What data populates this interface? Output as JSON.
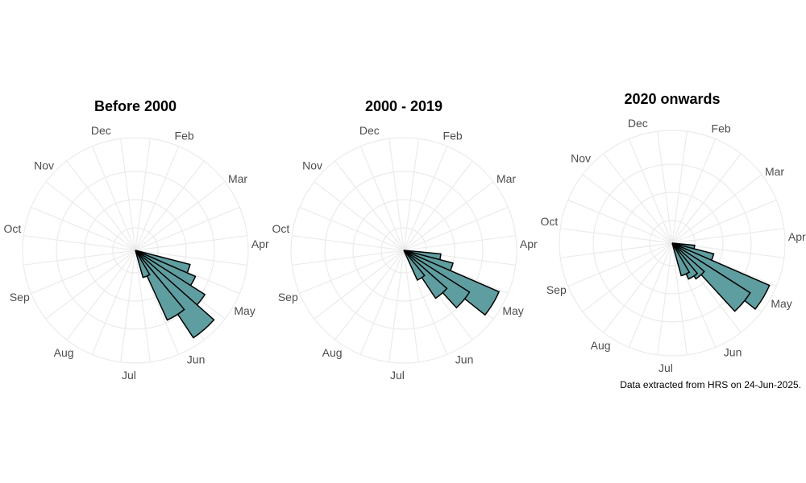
{
  "chart_data": [
    {
      "type": "polar-bar",
      "title": "Before 2000",
      "month_labels": [
        "Dec",
        "Feb",
        "Mar",
        "Apr",
        "May",
        "Jun",
        "Jul",
        "Aug",
        "Sep",
        "Oct",
        "Nov"
      ],
      "bar_angles_deg": [
        112,
        121,
        130,
        139,
        148,
        157
      ],
      "values": [
        0.5,
        0.58,
        0.73,
        0.93,
        0.68,
        0.25
      ],
      "fill_color": "#5f9ea0",
      "rmax": 1.0,
      "grid": true
    },
    {
      "type": "polar-bar",
      "title": "2000 - 2019",
      "month_labels": [
        "Dec",
        "Feb",
        "Mar",
        "Apr",
        "May",
        "Jun",
        "Jul",
        "Aug",
        "Sep",
        "Oct",
        "Nov"
      ],
      "bar_angles_deg": [
        103,
        112,
        121,
        130,
        139,
        148
      ],
      "values": [
        0.33,
        0.45,
        0.92,
        0.69,
        0.51,
        0.29
      ],
      "fill_color": "#5f9ea0",
      "rmax": 1.0,
      "grid": true
    },
    {
      "type": "polar-bar",
      "title": "2020 onwards",
      "month_labels": [
        "Dec",
        "Feb",
        "Mar",
        "Apr",
        "May",
        "Jun",
        "Jul",
        "Aug",
        "Sep",
        "Oct",
        "Nov"
      ],
      "bar_angles_deg": [
        103,
        112,
        121,
        130,
        139,
        148,
        157
      ],
      "values": [
        0.2,
        0.38,
        0.94,
        0.82,
        0.38,
        0.35,
        0.3
      ],
      "fill_color": "#5f9ea0",
      "rmax": 1.0,
      "grid": true
    }
  ],
  "caption": "Data extracted from HRS on 24-Jun-2025."
}
